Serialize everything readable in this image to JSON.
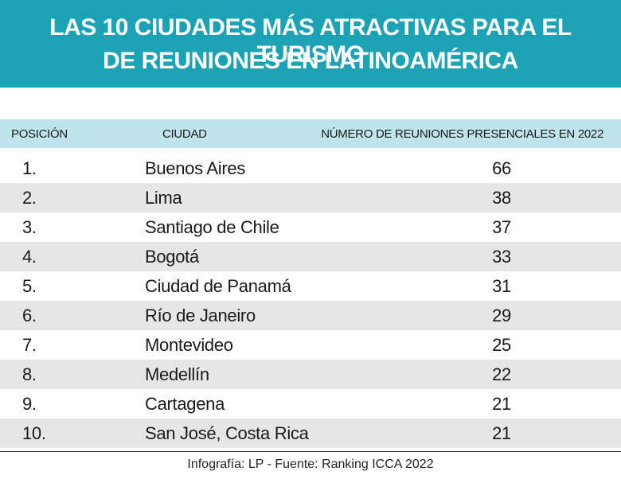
{
  "header": {
    "title": [
      "LAS 10 CIUDADES MÁS ATRACTIVAS PARA EL TURISMO",
      "DE REUNIONES EN LATINOAMÉRICA"
    ]
  },
  "table": {
    "columns": [
      "POSICIÓN",
      "CIUDAD",
      "NÚMERO DE REUNIONES PRESENCIALES EN 2022"
    ],
    "rows": [
      [
        "1.",
        "Buenos Aires",
        66
      ],
      [
        "2.",
        "Lima",
        38
      ],
      [
        "3.",
        "Santiago de Chile",
        37
      ],
      [
        "4.",
        "Bogotá",
        33
      ],
      [
        "5.",
        "Ciudad de Panamá",
        31
      ],
      [
        "6.",
        "Río de Janeiro",
        29
      ],
      [
        "7.",
        "Montevideo",
        25
      ],
      [
        "8.",
        "Medellín",
        22
      ],
      [
        "9.",
        "Cartagena",
        21
      ],
      [
        "10.",
        "San José, Costa Rica",
        21
      ]
    ]
  },
  "footer": "Infografía: LP - Fuente: Ranking ICCA 2022"
}
